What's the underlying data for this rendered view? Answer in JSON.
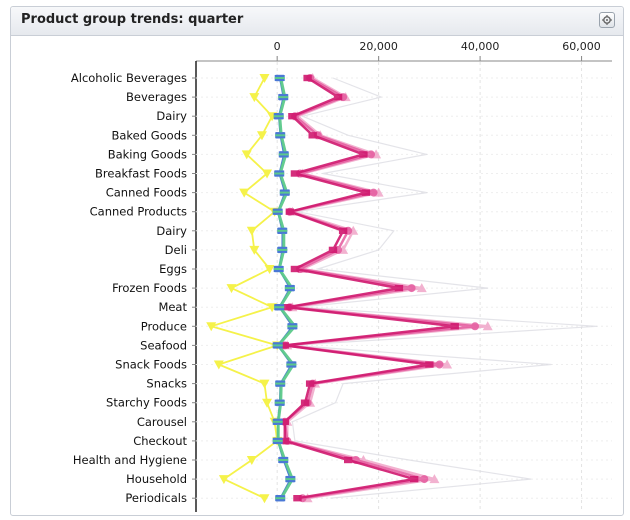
{
  "header": {
    "title": "Product group trends: quarter",
    "settings_icon": "gear-icon"
  },
  "colors": {
    "yellow": "#f5f24a",
    "green": "#5cc98a",
    "blue": "#4a78d6",
    "pink_dark": "#d0186e",
    "pink_mid": "#e45a9e",
    "pink_light": "#f0a5c8",
    "grey": "#d8d8e0"
  },
  "chart_data": {
    "type": "line",
    "orientation": "horizontal",
    "xlim": [
      -16000,
      66000
    ],
    "xticks": [
      0,
      20000,
      40000,
      60000
    ],
    "xtick_labels": [
      "0",
      "20,000",
      "40,000",
      "60,000"
    ],
    "grid": true,
    "categories": [
      "Alcoholic Beverages",
      "Beverages",
      "Dairy",
      "Baked Goods",
      "Baking Goods",
      "Breakfast Foods",
      "Canned Foods",
      "Canned Products",
      "Dairy",
      "Deli",
      "Eggs",
      "Frozen Foods",
      "Meat",
      "Produce",
      "Seafood",
      "Snack Foods",
      "Snacks",
      "Starchy Foods",
      "Carousel",
      "Checkout",
      "Health and Hygiene",
      "Household",
      "Periodicals"
    ],
    "series": [
      {
        "values": [
          -2500,
          -4500,
          -1000,
          -3000,
          -6000,
          -2000,
          -6500,
          -500,
          -5000,
          -4500,
          -1500,
          -9000,
          -1000,
          -13000,
          0,
          -11500,
          -2500,
          -2000,
          -500,
          0,
          -5000,
          -10500,
          -2500
        ],
        "marker": "triangle-down"
      },
      {
        "values": [
          500,
          1200,
          300,
          600,
          1300,
          400,
          1500,
          100,
          1000,
          1000,
          300,
          2500,
          400,
          3000,
          100,
          2800,
          600,
          500,
          100,
          100,
          1200,
          2600,
          600
        ],
        "marker": "square"
      },
      {
        "values": [
          700,
          1500,
          500,
          800,
          1700,
          600,
          1900,
          200,
          1300,
          1300,
          400,
          2900,
          500,
          3500,
          200,
          3200,
          800,
          700,
          200,
          200,
          1500,
          3000,
          800
        ]
      },
      {
        "values": [
          6000,
          12000,
          3000,
          7000,
          17000,
          3500,
          17500,
          2500,
          13000,
          11000,
          3500,
          24000,
          2000,
          35000,
          1500,
          30000,
          6500,
          5500,
          1500,
          1500,
          14000,
          27000,
          4000
        ],
        "marker": "square"
      },
      {
        "values": [
          6500,
          13000,
          3500,
          8000,
          18500,
          4500,
          19000,
          2500,
          14000,
          12000,
          4500,
          26500,
          2500,
          39000,
          1500,
          32000,
          7000,
          6000,
          1500,
          2000,
          15500,
          29000,
          5000
        ],
        "marker": "circle"
      },
      {
        "values": [
          7000,
          13500,
          4000,
          8500,
          19500,
          5000,
          20000,
          3000,
          15000,
          13000,
          5000,
          28500,
          3000,
          41500,
          2000,
          33500,
          7500,
          6500,
          2000,
          2000,
          17000,
          31000,
          6000
        ],
        "marker": "triangle"
      },
      {
        "values": [
          11000,
          20500,
          5000,
          14000,
          29500,
          9000,
          29500,
          4000,
          23000,
          20000,
          8000,
          41500,
          4500,
          63000,
          3000,
          54000,
          13000,
          11500,
          3000,
          3500,
          26000,
          50000,
          10500
        ]
      }
    ]
  }
}
